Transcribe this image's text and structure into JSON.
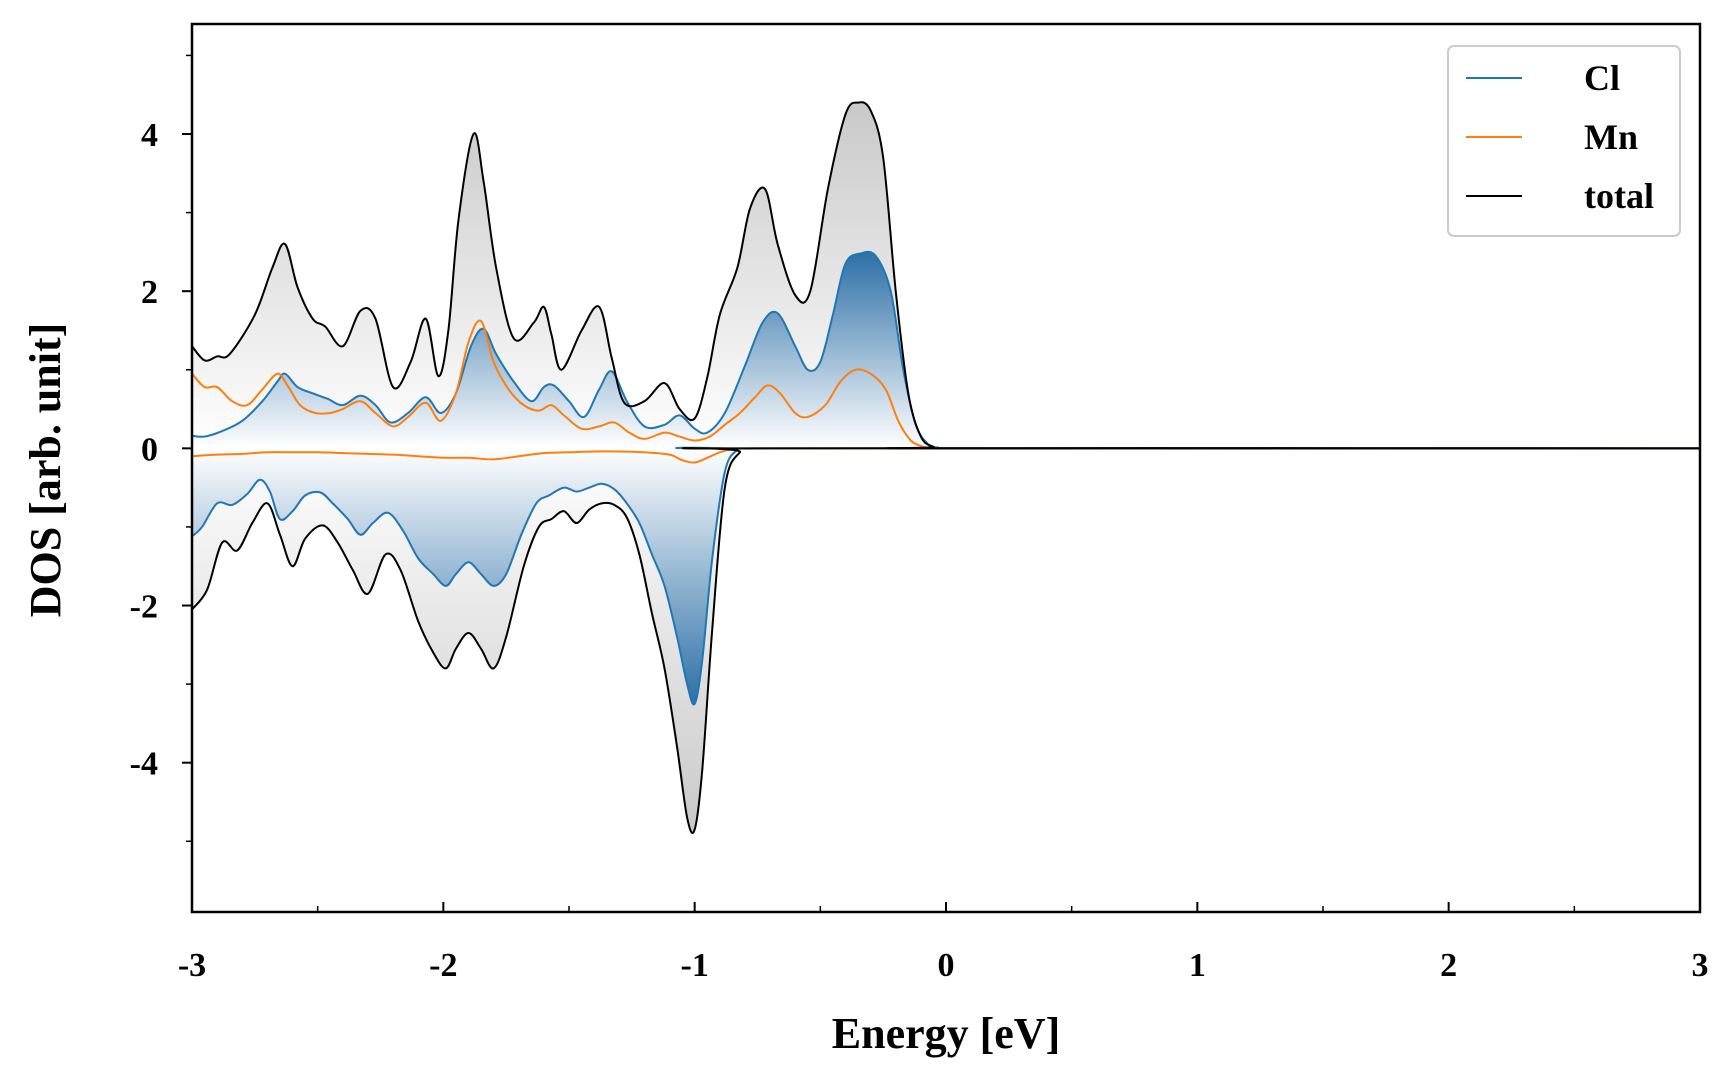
{
  "chart_data": {
    "type": "line",
    "title": "",
    "xlabel": "Energy [eV]",
    "ylabel": "DOS [arb. unit]",
    "xlim": [
      -3,
      3
    ],
    "ylim": [
      -5.9,
      5.4
    ],
    "xticks": [
      -3,
      -2,
      -1,
      0,
      1,
      2,
      3
    ],
    "xtick_labels": [
      "-3",
      "-2",
      "-1",
      "0",
      "1",
      "2",
      "3"
    ],
    "yticks": [
      -4,
      -2,
      0,
      2,
      4
    ],
    "ytick_labels": [
      "-4",
      "-2",
      "0",
      "2",
      "4"
    ],
    "grid": false,
    "legend_position": "top-right",
    "legend": [
      "Cl",
      "Mn",
      "total"
    ],
    "colors": {
      "Cl": "#1f77b4",
      "Mn": "#ff7f0e",
      "total": "#000000",
      "fill_total": "#bdbdbd",
      "fill_cl": "#2c6fa6"
    },
    "series": [
      {
        "name": "total",
        "color": "#000000",
        "fill": "gray-gradient",
        "up": {
          "x": [
            -3.0,
            -2.95,
            -2.9,
            -2.85,
            -2.75,
            -2.68,
            -2.63,
            -2.58,
            -2.52,
            -2.47,
            -2.4,
            -2.33,
            -2.27,
            -2.2,
            -2.13,
            -2.07,
            -2.02,
            -1.98,
            -1.94,
            -1.88,
            -1.84,
            -1.79,
            -1.72,
            -1.64,
            -1.6,
            -1.57,
            -1.53,
            -1.45,
            -1.38,
            -1.33,
            -1.28,
            -1.2,
            -1.12,
            -1.06,
            -1.0,
            -0.95,
            -0.9,
            -0.83,
            -0.78,
            -0.72,
            -0.67,
            -0.6,
            -0.54,
            -0.47,
            -0.4,
            -0.35,
            -0.3,
            -0.25,
            -0.2,
            -0.15,
            -0.1,
            -0.05,
            0.0,
            3.0
          ],
          "y": [
            1.3,
            1.12,
            1.17,
            1.2,
            1.7,
            2.3,
            2.6,
            2.05,
            1.65,
            1.55,
            1.3,
            1.75,
            1.65,
            0.78,
            1.1,
            1.65,
            0.92,
            1.5,
            2.9,
            4.0,
            3.4,
            2.3,
            1.4,
            1.6,
            1.8,
            1.45,
            1.0,
            1.5,
            1.8,
            1.15,
            0.58,
            0.6,
            0.83,
            0.5,
            0.38,
            0.9,
            1.7,
            2.3,
            3.05,
            3.3,
            2.6,
            1.95,
            2.0,
            3.3,
            4.25,
            4.4,
            4.3,
            3.7,
            2.0,
            0.7,
            0.15,
            0.02,
            0.0,
            0.0
          ]
        },
        "down": {
          "x": [
            -3.0,
            -2.94,
            -2.88,
            -2.82,
            -2.76,
            -2.7,
            -2.65,
            -2.6,
            -2.55,
            -2.48,
            -2.42,
            -2.36,
            -2.3,
            -2.23,
            -2.17,
            -2.1,
            -2.04,
            -1.99,
            -1.95,
            -1.9,
            -1.85,
            -1.8,
            -1.75,
            -1.68,
            -1.62,
            -1.57,
            -1.52,
            -1.47,
            -1.42,
            -1.37,
            -1.32,
            -1.27,
            -1.22,
            -1.17,
            -1.12,
            -1.07,
            -1.03,
            -1.0,
            -0.97,
            -0.93,
            -0.88,
            -0.82,
            -0.75,
            3.0
          ],
          "y": [
            -2.05,
            -1.8,
            -1.2,
            -1.3,
            -0.95,
            -0.7,
            -1.1,
            -1.5,
            -1.15,
            -0.98,
            -1.2,
            -1.55,
            -1.85,
            -1.35,
            -1.55,
            -2.2,
            -2.6,
            -2.8,
            -2.55,
            -2.35,
            -2.55,
            -2.8,
            -2.4,
            -1.5,
            -1.0,
            -0.9,
            -0.8,
            -0.95,
            -0.78,
            -0.7,
            -0.72,
            -0.88,
            -1.35,
            -2.1,
            -2.8,
            -3.8,
            -4.7,
            -4.85,
            -4.1,
            -2.3,
            -0.5,
            -0.05,
            0.0,
            0.0
          ]
        }
      },
      {
        "name": "Cl",
        "color": "#1f77b4",
        "fill": "blue-gradient",
        "up": {
          "x": [
            -3.0,
            -2.95,
            -2.88,
            -2.8,
            -2.72,
            -2.66,
            -2.63,
            -2.58,
            -2.52,
            -2.46,
            -2.4,
            -2.33,
            -2.27,
            -2.21,
            -2.14,
            -2.07,
            -2.01,
            -1.95,
            -1.89,
            -1.84,
            -1.79,
            -1.72,
            -1.65,
            -1.6,
            -1.56,
            -1.5,
            -1.44,
            -1.38,
            -1.33,
            -1.27,
            -1.2,
            -1.12,
            -1.06,
            -1.0,
            -0.95,
            -0.88,
            -0.8,
            -0.73,
            -0.67,
            -0.6,
            -0.55,
            -0.5,
            -0.45,
            -0.4,
            -0.34,
            -0.28,
            -0.22,
            -0.17,
            -0.12,
            -0.07,
            -0.03,
            0.0,
            3.0
          ],
          "y": [
            0.16,
            0.15,
            0.22,
            0.35,
            0.6,
            0.85,
            0.95,
            0.78,
            0.7,
            0.63,
            0.55,
            0.67,
            0.55,
            0.33,
            0.45,
            0.65,
            0.45,
            0.7,
            1.3,
            1.52,
            1.2,
            0.85,
            0.6,
            0.78,
            0.8,
            0.6,
            0.4,
            0.75,
            0.98,
            0.6,
            0.28,
            0.3,
            0.42,
            0.25,
            0.2,
            0.45,
            1.05,
            1.6,
            1.72,
            1.3,
            1.0,
            1.1,
            1.7,
            2.35,
            2.48,
            2.45,
            2.0,
            1.0,
            0.3,
            0.05,
            0.01,
            0.0,
            0.0
          ]
        },
        "down": {
          "x": [
            -3.0,
            -2.96,
            -2.9,
            -2.84,
            -2.78,
            -2.73,
            -2.69,
            -2.65,
            -2.6,
            -2.55,
            -2.49,
            -2.44,
            -2.38,
            -2.33,
            -2.28,
            -2.22,
            -2.16,
            -2.1,
            -2.04,
            -1.99,
            -1.95,
            -1.9,
            -1.85,
            -1.8,
            -1.75,
            -1.69,
            -1.63,
            -1.58,
            -1.52,
            -1.47,
            -1.42,
            -1.37,
            -1.32,
            -1.27,
            -1.22,
            -1.17,
            -1.12,
            -1.07,
            -1.03,
            -1.0,
            -0.97,
            -0.93,
            -0.88,
            -0.83,
            -0.78,
            3.0
          ],
          "y": [
            -1.12,
            -1.0,
            -0.7,
            -0.72,
            -0.58,
            -0.4,
            -0.55,
            -0.9,
            -0.8,
            -0.6,
            -0.56,
            -0.7,
            -0.9,
            -1.1,
            -0.95,
            -0.82,
            -1.05,
            -1.4,
            -1.6,
            -1.75,
            -1.6,
            -1.45,
            -1.6,
            -1.75,
            -1.6,
            -1.1,
            -0.7,
            -0.6,
            -0.5,
            -0.55,
            -0.5,
            -0.45,
            -0.52,
            -0.7,
            -0.95,
            -1.35,
            -1.75,
            -2.4,
            -3.0,
            -3.25,
            -2.7,
            -1.4,
            -0.3,
            -0.02,
            0.0,
            0.0
          ]
        }
      },
      {
        "name": "Mn",
        "color": "#ff7f0e",
        "fill": "none",
        "up": {
          "x": [
            -3.0,
            -2.95,
            -2.9,
            -2.84,
            -2.78,
            -2.72,
            -2.66,
            -2.62,
            -2.57,
            -2.51,
            -2.45,
            -2.4,
            -2.33,
            -2.27,
            -2.2,
            -2.14,
            -2.07,
            -2.01,
            -1.95,
            -1.9,
            -1.85,
            -1.8,
            -1.74,
            -1.68,
            -1.62,
            -1.57,
            -1.52,
            -1.45,
            -1.38,
            -1.32,
            -1.26,
            -1.2,
            -1.12,
            -1.06,
            -1.0,
            -0.94,
            -0.88,
            -0.82,
            -0.76,
            -0.71,
            -0.66,
            -0.6,
            -0.55,
            -0.48,
            -0.42,
            -0.36,
            -0.3,
            -0.24,
            -0.19,
            -0.14,
            -0.09,
            -0.05,
            0.0,
            3.0
          ],
          "y": [
            0.95,
            0.78,
            0.78,
            0.6,
            0.55,
            0.75,
            0.95,
            0.8,
            0.55,
            0.45,
            0.45,
            0.5,
            0.6,
            0.45,
            0.28,
            0.4,
            0.58,
            0.35,
            0.7,
            1.35,
            1.62,
            1.1,
            0.75,
            0.55,
            0.48,
            0.55,
            0.42,
            0.25,
            0.28,
            0.33,
            0.2,
            0.12,
            0.2,
            0.15,
            0.1,
            0.15,
            0.3,
            0.45,
            0.65,
            0.8,
            0.7,
            0.45,
            0.4,
            0.55,
            0.85,
            1.0,
            0.95,
            0.75,
            0.35,
            0.1,
            0.02,
            0.0,
            0.0,
            0.0
          ]
        },
        "down": {
          "x": [
            -3.0,
            -2.9,
            -2.8,
            -2.7,
            -2.6,
            -2.5,
            -2.4,
            -2.3,
            -2.2,
            -2.1,
            -2.0,
            -1.9,
            -1.8,
            -1.7,
            -1.6,
            -1.5,
            -1.4,
            -1.3,
            -1.2,
            -1.1,
            -1.05,
            -1.0,
            -0.95,
            -0.9,
            -0.85,
            -0.8,
            -0.75,
            3.0
          ],
          "y": [
            -0.1,
            -0.08,
            -0.07,
            -0.05,
            -0.05,
            -0.05,
            -0.06,
            -0.07,
            -0.08,
            -0.1,
            -0.12,
            -0.12,
            -0.14,
            -0.1,
            -0.06,
            -0.05,
            -0.04,
            -0.04,
            -0.05,
            -0.08,
            -0.15,
            -0.18,
            -0.12,
            -0.05,
            -0.01,
            0.0,
            0.0,
            0.0
          ]
        }
      }
    ]
  }
}
